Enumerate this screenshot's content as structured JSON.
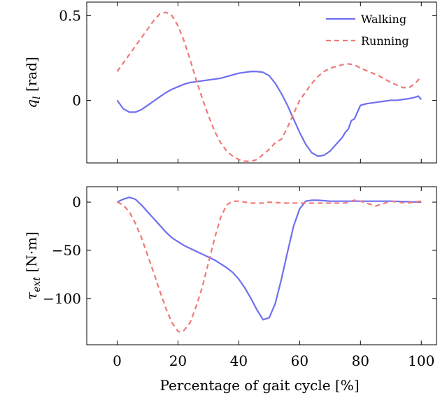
{
  "chart_data": [
    {
      "type": "line",
      "ylabel": "q_l [rad]",
      "ylabel_parts": {
        "symbol": "q",
        "subscript": "l",
        "unit": " [rad]"
      },
      "xlim": [
        -10,
        105
      ],
      "ylim": [
        -0.37,
        0.58
      ],
      "yticks": [
        0,
        0.5
      ],
      "ytick_labels": [
        "0",
        "0.5"
      ],
      "xticks": [
        0,
        20,
        40,
        60,
        80,
        100
      ],
      "legend": "top-right",
      "series": [
        {
          "name": "Walking",
          "color": "#6f6ff0",
          "style": "solid",
          "x": [
            0,
            2,
            4,
            6,
            8,
            10,
            12,
            14,
            16,
            18,
            20,
            22,
            24,
            26,
            28,
            30,
            32,
            34,
            36,
            38,
            40,
            42,
            44,
            46,
            48,
            50,
            52,
            54,
            56,
            58,
            60,
            62,
            64,
            66,
            68,
            70,
            72,
            74,
            75,
            76,
            77,
            78,
            79,
            80,
            82,
            84,
            86,
            88,
            90,
            92,
            94,
            96,
            98,
            99,
            100
          ],
          "y": [
            0,
            -0.05,
            -0.07,
            -0.07,
            -0.055,
            -0.03,
            -0.005,
            0.02,
            0.045,
            0.065,
            0.08,
            0.095,
            0.105,
            0.11,
            0.115,
            0.12,
            0.125,
            0.13,
            0.14,
            0.15,
            0.16,
            0.165,
            0.17,
            0.17,
            0.165,
            0.145,
            0.1,
            0.04,
            -0.03,
            -0.11,
            -0.19,
            -0.26,
            -0.31,
            -0.33,
            -0.325,
            -0.3,
            -0.26,
            -0.22,
            -0.19,
            -0.17,
            -0.12,
            -0.11,
            -0.07,
            -0.03,
            -0.02,
            -0.015,
            -0.01,
            -0.005,
            0,
            0,
            0.005,
            0.01,
            0.018,
            0.025,
            0.005
          ]
        },
        {
          "name": "Running",
          "color": "#f07878",
          "style": "dashed",
          "x": [
            0,
            2,
            4,
            6,
            8,
            10,
            12,
            14,
            16,
            18,
            20,
            22,
            24,
            26,
            28,
            30,
            32,
            34,
            36,
            38,
            40,
            42,
            44,
            46,
            48,
            50,
            52,
            54,
            56,
            58,
            60,
            62,
            64,
            66,
            68,
            70,
            72,
            74,
            76,
            78,
            80,
            82,
            84,
            86,
            88,
            90,
            92,
            94,
            96,
            98,
            100
          ],
          "y": [
            0.17,
            0.22,
            0.27,
            0.32,
            0.37,
            0.42,
            0.47,
            0.51,
            0.52,
            0.5,
            0.44,
            0.35,
            0.24,
            0.12,
            0.01,
            -0.09,
            -0.18,
            -0.25,
            -0.3,
            -0.33,
            -0.35,
            -0.36,
            -0.36,
            -0.35,
            -0.32,
            -0.29,
            -0.25,
            -0.23,
            -0.16,
            -0.08,
            0,
            0.05,
            0.1,
            0.14,
            0.17,
            0.19,
            0.2,
            0.21,
            0.215,
            0.21,
            0.19,
            0.175,
            0.16,
            0.145,
            0.125,
            0.105,
            0.09,
            0.075,
            0.075,
            0.1,
            0.14
          ]
        }
      ]
    },
    {
      "type": "line",
      "xlabel": "Percentage of gait cycle [%]",
      "ylabel": "τ_ext [N·m]",
      "ylabel_parts": {
        "symbol": "τ",
        "subscript": "ext",
        "unit": " [N·m]"
      },
      "xlim": [
        -10,
        105
      ],
      "ylim": [
        -148,
        16
      ],
      "yticks": [
        0,
        -50,
        -100
      ],
      "ytick_labels": [
        "0",
        "−50",
        "−100"
      ],
      "xticks": [
        0,
        20,
        40,
        60,
        80,
        100
      ],
      "xtick_labels": [
        "0",
        "20",
        "40",
        "60",
        "80",
        "100"
      ],
      "series": [
        {
          "name": "Walking",
          "color": "#6f6ff0",
          "style": "solid",
          "x": [
            0,
            2,
            4,
            6,
            8,
            10,
            12,
            14,
            16,
            18,
            20,
            22,
            24,
            26,
            28,
            30,
            32,
            34,
            36,
            38,
            40,
            42,
            44,
            46,
            48,
            50,
            52,
            54,
            56,
            58,
            60,
            62,
            64,
            66,
            68,
            70,
            75,
            80,
            85,
            90,
            95,
            100
          ],
          "y": [
            0,
            3,
            5,
            3,
            -3,
            -10,
            -17,
            -24,
            -31,
            -37,
            -41,
            -45,
            -48,
            -51,
            -54,
            -57,
            -60,
            -64,
            -68,
            -73,
            -80,
            -89,
            -100,
            -112,
            -122,
            -120,
            -105,
            -80,
            -52,
            -25,
            -7,
            1,
            2,
            2,
            1.5,
            1,
            1,
            1,
            1,
            1,
            0.5,
            0
          ]
        },
        {
          "name": "Running",
          "color": "#f07878",
          "style": "dashed",
          "x": [
            0,
            2,
            4,
            6,
            8,
            10,
            12,
            14,
            16,
            18,
            20,
            21,
            22,
            24,
            26,
            28,
            30,
            32,
            34,
            36,
            38,
            40,
            42,
            44,
            46,
            48,
            50,
            55,
            60,
            65,
            70,
            75,
            78,
            80,
            85,
            90,
            95,
            100
          ],
          "y": [
            0,
            -3,
            -10,
            -22,
            -37,
            -55,
            -73,
            -92,
            -110,
            -125,
            -134,
            -135,
            -133,
            -125,
            -108,
            -88,
            -63,
            -38,
            -16,
            -3,
            1,
            1,
            0,
            -1,
            -1,
            -1,
            0,
            -1,
            -1,
            -1,
            -1,
            -1,
            2,
            1,
            -4,
            1,
            -1,
            1
          ]
        }
      ]
    }
  ]
}
